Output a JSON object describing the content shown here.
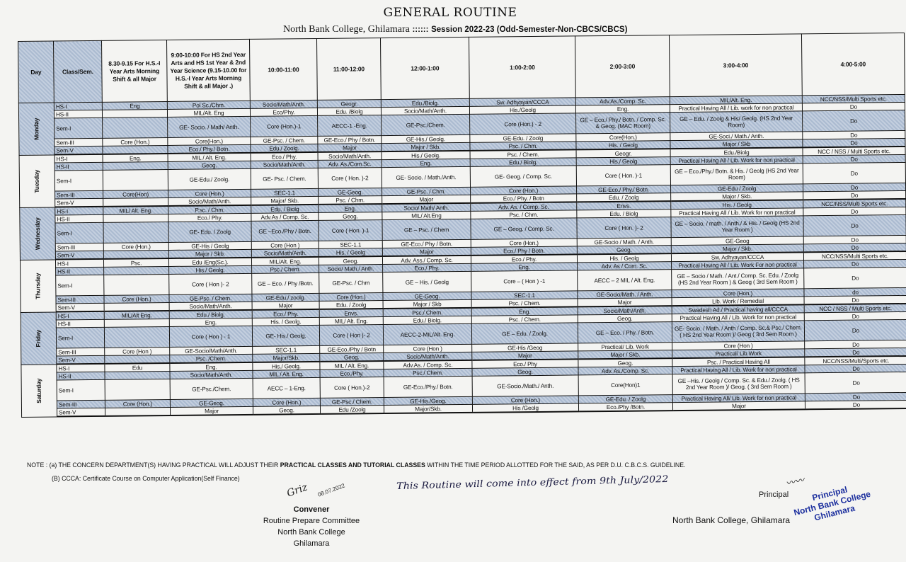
{
  "header": {
    "title": "GENERAL ROUTINE",
    "college": "North Bank College, Ghilamara",
    "separator": "::::::",
    "session": "Session 2022-23 (Odd-Semester-Non-CBCS/CBCS)"
  },
  "colors": {
    "shaded_row": "#b7c5d8",
    "border": "#111111",
    "stamp": "#1c2f9e"
  },
  "columns": [
    "Day",
    "Class/Sem.",
    "8.30-9.15 For H.S.-I Year Arts Morning Shift & all Major",
    "9:00-10:00 For HS 2nd Year Arts and HS 1st Year & 2nd Year Science (9.15-10.00 for H.S.-I Year Arts Morning Shift & all Major .)",
    "10:00-11:00",
    "11:00-12:00",
    "12:00-1:00",
    "1:00-2:00",
    "2:00-3:00",
    "3:00-4:00",
    "4:00-5:00"
  ],
  "days": [
    {
      "name": "Monday",
      "shaded": [
        0,
        2,
        4
      ],
      "rows": [
        {
          "cls": "HS-I",
          "cells": [
            "Eng",
            "Pol Sc./Chm.",
            "Socio/Math/Anth.",
            "Geogr.",
            "Edu./Biolg.",
            "Sw. Adhyayan/CCCA",
            "Adv.As./Comp. Sc.",
            "MIL/Alt. Eng.",
            "NCC/NSS/Multi Sports etc."
          ]
        },
        {
          "cls": "HS-II",
          "cells": [
            "",
            "MIL/Alt. Eng",
            "Eco/Phy.",
            "Edu. /Biolg",
            "Socio/Math/Anth.",
            "His./Geolg",
            "Eng.",
            "Practical Having All / Lib. work for non practical",
            "Do"
          ]
        },
        {
          "cls": "Sem-I",
          "cells": [
            "",
            "GE- Socio. / Math/ Anth.",
            "Core (Hon.)-1",
            "AECC-1 -Eng.",
            "GE-Psc./Chem.",
            "Core (Hon.) - 2",
            "GE – Eco./ Phy./ Botn. / Comp. Sc. & Geog. (MAC Room)",
            "GE – Edu. / Zoolg & His/ Geolg. (HS 2nd Year Room)",
            "Do"
          ]
        },
        {
          "cls": "Sem-III",
          "cells": [
            "Core (Hon.)",
            "Core(Hon.)",
            "GE-Psc. / Chem.",
            "GE-Eco./ Phy / Botn.",
            "GE-His./ Geolg.",
            "GE-Edu. / Zoolg",
            "Core(Hon.)",
            "GE-Soci./ Math./ Anth.",
            "Do"
          ]
        },
        {
          "cls": "Sem-V",
          "cells": [
            "",
            "Eco./ Phy./ Botn.",
            "Edu./ Zoolg.",
            "Major",
            "Major / Skb.",
            "Psc. / Chm.",
            "His. / Geolg",
            "Major / Skb",
            "Do"
          ]
        }
      ]
    },
    {
      "name": "Tuesday",
      "shaded": [
        1,
        3
      ],
      "rows": [
        {
          "cls": "HS-I",
          "cells": [
            "Eng.",
            "MIL / Alt. Eng.",
            "Eco./ Phy.",
            "Socio/Math/Anth.",
            "His./ Geolg.",
            "Psc. / Chem.",
            "Geogr.",
            "Edu./Biolg",
            "NCC / NSS / Multi Sports etc."
          ]
        },
        {
          "cls": "HS-II",
          "cells": [
            "",
            "Geog.",
            "Socio/Math/Anth.",
            "Adv. As./Com.Sc.",
            "Eng.",
            "Edu./ Biolg.",
            "His./ Geolg",
            "Practical Having All / Lib. Work for non practical",
            "Do"
          ]
        },
        {
          "cls": "Sem-I",
          "cells": [
            "",
            "GE-Edu./ Zoolg.",
            "GE- Psc. / Chem.",
            "Core ( Hon. )-2",
            "GE- Socio. / Math./Anth.",
            "GE- Geog. / Comp. Sc.",
            "Core ( Hon. )-1",
            "GE – Eco./Phy./ Botn. & His. / Geolg (HS 2nd Year Room)",
            "Do"
          ]
        },
        {
          "cls": "Sem-III",
          "cells": [
            "Core(Hon)",
            "Core (Hon.)",
            "SEC-1.1",
            "GE-Geog.",
            "GE-Psc. / Chm.",
            "Core (Hon.)",
            "GE-Eco./ Phy./ Botn.",
            "GE-Edu / Zoolg",
            "Do"
          ]
        },
        {
          "cls": "Sem-V",
          "cells": [
            "",
            "Socio/Math/Anth.",
            "Major/ Skb.",
            "Psc. / Chm.",
            "Major",
            "Eco./ Phy. / Botn",
            "Edu. / Zoolg",
            "Major / Skb.",
            "Do"
          ]
        }
      ]
    },
    {
      "name": "Wednesday",
      "shaded": [
        0,
        2,
        4
      ],
      "rows": [
        {
          "cls": "HS-I",
          "cells": [
            "MIL/ Alt. Eng.",
            "P.sc. / Chm.",
            "Edu. / Biolg",
            "Eng.",
            "Socio/ Math/ Anth.",
            "Adv. As. / Comp. Sc.",
            "Envs.",
            "His. / Geolg",
            "NCC/NSS/Multi Sports etc."
          ]
        },
        {
          "cls": "HS-II",
          "cells": [
            "",
            "Eco./ Phy.",
            "Adv.As / Comp. Sc.",
            "Geog.",
            "MIL/ Alt.Eng",
            "Psc. / Chm.",
            "Edu. / Biolg",
            "Practical Having All / Lib. Work for non practical",
            "Do"
          ]
        },
        {
          "cls": "Sem-I",
          "cells": [
            "",
            "GE- Edu. / Zoolg",
            "GE –Eco./Phy / Botn.",
            "Core ( Hon. )-1",
            "GE – Psc. / Chem",
            "GE – Geog. / Comp. Sc.",
            "Core ( Hon. )- 2",
            "GE – Socio. / math. / Anth./ & His. / Geolg (HS 2nd Year Room )",
            "Do"
          ]
        },
        {
          "cls": "Sem-III",
          "cells": [
            "Core (Hon.)",
            "GE-His / Geolg",
            "Core (Hon )",
            "SEC-1.1",
            "GE-Eco./ Phy / Botn.",
            "Core (Hon.)",
            "GE-Socio / Math. / Anth.",
            "GE-Geog",
            "Do"
          ]
        },
        {
          "cls": "Sem-V",
          "cells": [
            "",
            "Major / Skb.",
            "Socio/Math/Anth.",
            "His. / Geolg",
            "Major",
            "Eco./ Phy / Botn.",
            "Geog.",
            "Major / Skb.",
            "Do"
          ]
        }
      ]
    },
    {
      "name": "Thursday",
      "shaded": [
        1,
        3
      ],
      "rows": [
        {
          "cls": "HS-I",
          "cells": [
            "Psc.",
            "Edu /Eng(Sc.).",
            "MIL/Alt. Eng.",
            "Geog.",
            "Adv. Ass./ Comp. Sc.",
            "Eco./ Phy.",
            "His. / Geolg",
            "Sw. Adhyayan/CCCA",
            "NCC/NSS/Multi Sports etc."
          ]
        },
        {
          "cls": "HS-II",
          "cells": [
            "",
            "His./ Geolg.",
            "Psc./ Chem.",
            "Socio/ Math./ Anth.",
            "Eco./ Phy.",
            "Eng.",
            "Adv. As / Com. Sc.",
            "Practical Having All / Lib. Work For non practical",
            "Do"
          ]
        },
        {
          "cls": "Sem-I",
          "cells": [
            "",
            "Core ( Hon )- 2",
            "GE – Eco. / Phy /Botn.",
            "GE-Psc. / Chm",
            "GE – His. / Geolg",
            "Core – ( Hon ) -1",
            "AECC – 2 MIL / Alt. Eng.",
            "GE – Socio / Math. / Ant./ Comp. Sc. Edu. / Zoolg (HS 2nd Year Room ) & Geog ( 3rd Sem Room )",
            "Do"
          ]
        },
        {
          "cls": "Sem-III",
          "cells": [
            "Core (Hon.)",
            "GE-Psc. / Chem.",
            "GE-Edu./ zoolg.",
            "Core (Hon.)",
            "GE-Geog.",
            "SEC-1.1",
            "GE-Socio/Math. / Anth.",
            "Core (Hon.)",
            "do"
          ]
        },
        {
          "cls": "Sem-V",
          "cells": [
            "",
            "Socio/Math/Anth.",
            "Major",
            "Edu. / Zoolg",
            "Major / Skb",
            "Psc. / Chem.",
            "Major",
            "Lib. Work / Remedial",
            "Do"
          ]
        }
      ]
    },
    {
      "name": "Friday",
      "shaded": [
        0,
        2,
        4
      ],
      "rows": [
        {
          "cls": "HS-I",
          "cells": [
            "MIL/Alt Eng.",
            "Edu./ Biolg.",
            "Eco./ Phy.",
            "Envs.",
            "Psc./ Chem.",
            "Eng.",
            "Socio/Math/Anth.",
            "Swadesh Ad./ Practical having all/CCCA",
            "NCC / NSS / Multi Sports etc."
          ]
        },
        {
          "cls": "HS-II",
          "cells": [
            "",
            "Eng.",
            "His. / Geolg.",
            "MIL/ Alt. Eng.",
            "Edu./ Biolg.",
            "Psc. / Chem.",
            "Geog.",
            "Practical Having All / Lib. Work for non practical",
            "Do"
          ]
        },
        {
          "cls": "Sem-I",
          "cells": [
            "",
            "Core ( Hon ) - 1",
            "GE- His./ Geolg.",
            "Core ( Hon )- 2",
            "AECC-2-MIL/Alt. Eng.",
            "GE – Edu. / Zoolg.",
            "GE – Eco. / Phy. / Botn.",
            "GE- Socio. / Math. / Anth / Comp. Sc.& Psc./ Chem. ( HS 2nd Year Room )/ Geog ( 3rd Sem Room )",
            "Do"
          ]
        },
        {
          "cls": "Sem-III",
          "cells": [
            "Core (Hon )",
            "GE-Socio/Math/Anth.",
            "SEC-1.1",
            "GE-Eco./Phy / Botn",
            "Core (Hon )",
            "GE-His /Geog",
            "Practical/ Lib. Work",
            "Core (Hon )",
            "Do"
          ]
        },
        {
          "cls": "Sem-V",
          "cells": [
            "",
            "Psc. /Chem.",
            "Major/Skb.",
            "Geog.",
            "Socio/Math/Anth.",
            "Major",
            "Major / Skb.",
            "Practical/ Lib.Work",
            "Do"
          ]
        }
      ]
    },
    {
      "name": "Saturday",
      "shaded": [
        1,
        3
      ],
      "rows": [
        {
          "cls": "HS-I",
          "cells": [
            "Edu",
            "Eng.",
            "His./ Geolg.",
            "MIL / Alt. Eng.",
            "Adv.As. / Comp. Sc.",
            "Eco./ Phy",
            "Geog.",
            "Psc. / Practical Having All",
            "NCC/NSS/Multi/Sports etc."
          ]
        },
        {
          "cls": "HS-II",
          "cells": [
            "",
            "Socio/Math/Anth.",
            "MIL / Alt. Eng.",
            "Eco./Phy.",
            "Psc./ Chem.",
            "Geog.",
            "Adv. As./Comp. Sc.",
            "Practical Having All / Lib. Work for non practical",
            "Do"
          ]
        },
        {
          "cls": "Sem-I",
          "cells": [
            "",
            "GE-Psc./Chem.",
            "AECC – 1-Eng.",
            "Core ( Hon.)-2",
            "GE-Eco./Phy./ Botn.",
            "GE-Socio./Math./ Anth.",
            "Core(Hon)1",
            "GE –His. / Geolg / Comp. Sc. & Edu./ Zoolg. ( HS 2nd Year Room )/ Geog. ( 3rd Sem Room )",
            "Do"
          ]
        },
        {
          "cls": "Sem-III",
          "cells": [
            "Core (Hon.)",
            "GE-Geog.",
            "Core (Hon.)",
            "GE-Psc./ Chem.",
            "GE-His./Geog.",
            "Core (Hon.)",
            "GE-Edu. / Zoolg",
            "Practical Having All/ Lib. Work for non practical",
            "Do"
          ]
        },
        {
          "cls": "Sem-V",
          "cells": [
            "",
            "Major",
            "Geog.",
            "Edu /Zoolg",
            "Major/Skb.",
            "His /Geolg",
            "Eco./Phy /Botn.",
            "Major",
            "Do"
          ]
        }
      ]
    }
  ],
  "notes": {
    "note_prefix": "NOTE : (a) THE CONCERN DEPARTMENT(S) HAVING PRACTICAL WILL  ADJUST THEIR ",
    "note_bold": "PRACTICAL CLASSES AND TUTORIAL CLASSES",
    "note_suffix": " WITHIN THE TIME PERIOD ALLOTTED FOR THE SAID, AS PER D.U.  C.B.C.S. GUIDELINE.",
    "note_b": "(B) CCCA: Certificate Course on Computer Application(Self Finance)"
  },
  "handwritten": "This Routine will come into effect from 9th July/2022",
  "convener": {
    "signature": "Griz",
    "signature_date": "08.07.2022",
    "title": "Convener",
    "line1": "Routine Prepare Committee",
    "line2": "North Bank College",
    "line3": "Ghilamara"
  },
  "principal": {
    "signature": "signed 2022",
    "label": "Principal",
    "college": "North Bank  College, Ghilamara",
    "stamp_line1": "Principal",
    "stamp_line2": "North Bank College",
    "stamp_line3": "Ghilamara"
  }
}
